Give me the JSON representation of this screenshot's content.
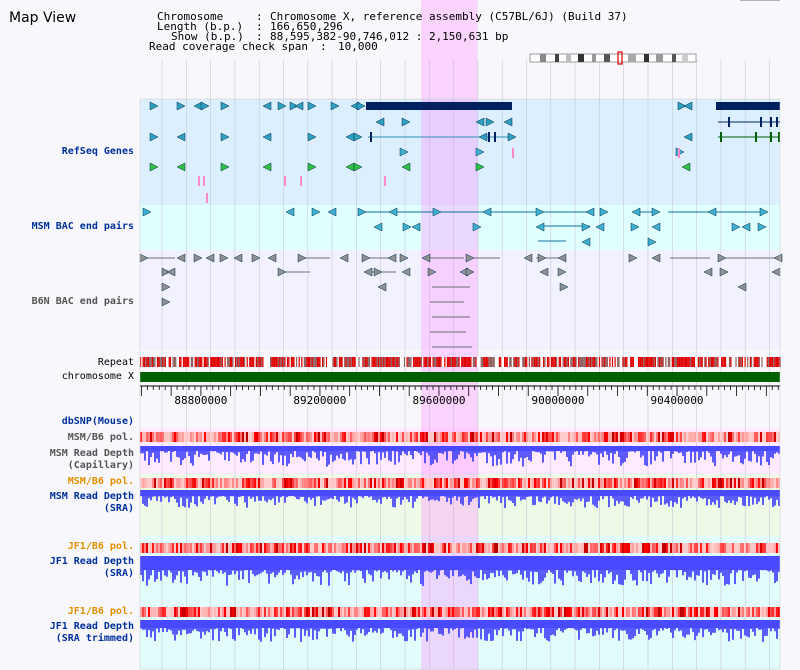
{
  "title": "Map View",
  "info": {
    "chromosome_label": "Chromosome",
    "chromosome_value": "Chromosome X, reference assembly (C57BL/6J) (Build 37)",
    "length_label": "Length (b.p.)",
    "length_value": "166,650,296",
    "show_label": "Show (b.p.)",
    "show_value": "88,595,382-90,746,012 : 2,150,631 bp",
    "coverage_label": "Read coverage check span",
    "coverage_value": "10,000"
  },
  "view": {
    "start": 88595382,
    "end": 90746012,
    "highlight": [
      89540000,
      89730000
    ]
  },
  "axis": {
    "ticks": [
      88800000,
      89200000,
      89600000,
      90000000,
      90400000
    ],
    "tick_labels": [
      "88800000",
      "89200000",
      "89600000",
      "90000000",
      "90400000"
    ]
  },
  "tracks": {
    "refseq": "RefSeq Genes",
    "msm_bac": "MSM BAC end pairs",
    "b6n_bac": "B6N BAC end pairs",
    "repeat": "Repeat",
    "chromosome": "chromosome X",
    "dbsnp": "dbSNP(Mouse)",
    "msm_pol_1": "MSM/B6 pol.",
    "msm_depth_cap_1": "MSM Read Depth",
    "msm_depth_cap_2": "(Capillary)",
    "msm_pol_2": "MSM/B6 pol.",
    "msm_depth_sra_1": "MSM Read Depth",
    "msm_depth_sra_2": "(SRA)",
    "jf1_pol_1": "JF1/B6 pol.",
    "jf1_depth_sra_1": "JF1 Read Depth",
    "jf1_depth_sra_2": "(SRA)",
    "jf1_pol_2": "JF1/B6 pol.",
    "jf1_depth_trim_1": "JF1 Read Depth",
    "jf1_depth_trim_2": "(SRA trimmed)"
  },
  "colors": {
    "gene_fill": "#002060",
    "refseq_bg": "#dcefff",
    "bac_bg": "#e0ffff",
    "highlight": "#ff80ff",
    "repeat": "#e00000",
    "chromosome": "#006000",
    "depth": "#4040ff"
  }
}
